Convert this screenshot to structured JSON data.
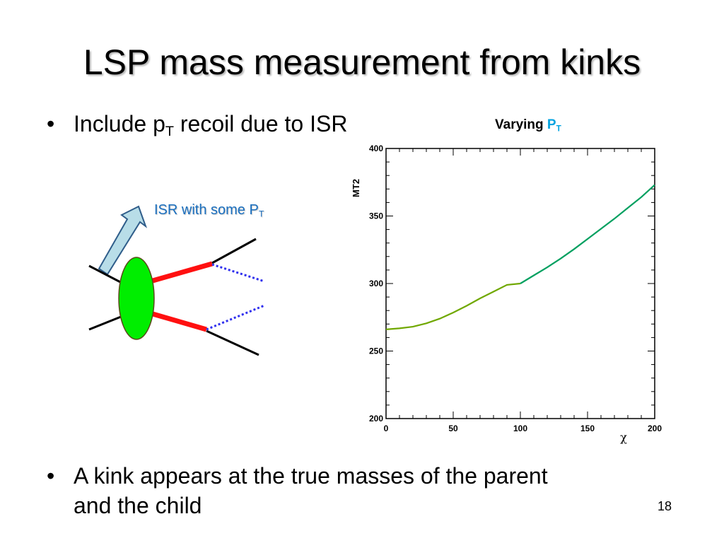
{
  "slide": {
    "title": "LSP mass measurement from kinks",
    "bullet1": {
      "marker": "•",
      "text_pre": "Include p",
      "text_sub": "T",
      "text_post": " recoil due to ISR"
    },
    "bullet2": {
      "marker": "•",
      "line1": "A kink appears at the true masses of the parent",
      "line2": "and the child"
    },
    "page_number": "18",
    "diagram": {
      "label_pre": "ISR with some P",
      "label_sub": "T"
    },
    "chart_caption": {
      "pre": "Varying ",
      "accent": "P",
      "sub": "T"
    }
  },
  "colors": {
    "blob": "#00ee00",
    "parent_line": "#ff1010",
    "child_line": "#3030ee",
    "arrow_fill": "#b8dde8",
    "curve_low": "#70a800",
    "curve_high": "#00a060",
    "caption_accent": "#00a3e0"
  },
  "chart_data": {
    "type": "line",
    "title": "",
    "xlabel": "χ",
    "ylabel": "MT2",
    "xlim": [
      0,
      200
    ],
    "ylim": [
      200,
      400
    ],
    "x_ticks": [
      0,
      50,
      100,
      150,
      200
    ],
    "y_ticks": [
      200,
      250,
      300,
      350,
      400
    ],
    "grid": false,
    "series": [
      {
        "x": [
          0,
          10,
          20,
          30,
          40,
          50,
          60,
          70,
          80,
          90,
          100
        ],
        "y": [
          266,
          266.8,
          268,
          270.5,
          274,
          278.5,
          283.5,
          289,
          294,
          299,
          300
        ]
      },
      {
        "x": [
          100,
          110,
          120,
          130,
          140,
          150,
          160,
          170,
          180,
          190,
          200
        ],
        "y": [
          300,
          306,
          312,
          318.5,
          325.5,
          333,
          340.5,
          348,
          356,
          364,
          373
        ]
      }
    ]
  }
}
